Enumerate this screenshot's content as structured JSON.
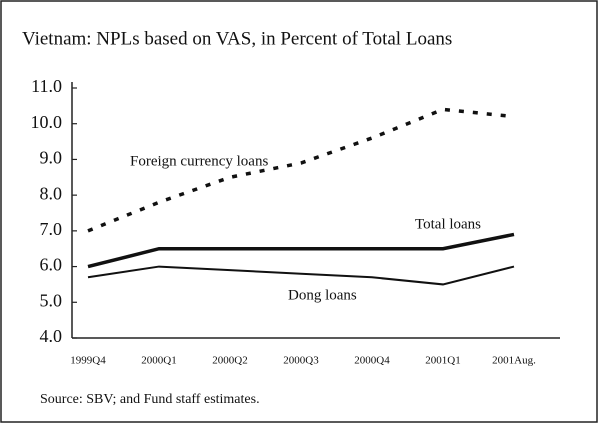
{
  "chart_data": {
    "type": "line",
    "title": "Vietnam: NPLs based on VAS, in Percent of Total Loans",
    "categories": [
      "1999Q4",
      "2000Q1",
      "2000Q2",
      "2000Q3",
      "2000Q4",
      "2001Q1",
      "2001Aug."
    ],
    "series": [
      {
        "name": "Foreign currency loans",
        "color": "#111111",
        "dash": "dotted",
        "values": [
          7.0,
          7.8,
          8.5,
          8.9,
          9.6,
          10.4,
          10.2
        ]
      },
      {
        "name": "Total loans",
        "color": "#111111",
        "dash": "solid-thick",
        "values": [
          6.0,
          6.5,
          6.5,
          6.5,
          6.5,
          6.5,
          6.9
        ]
      },
      {
        "name": "Dong loans",
        "color": "#111111",
        "dash": "solid",
        "values": [
          5.7,
          6.0,
          5.9,
          5.8,
          5.7,
          5.5,
          6.0
        ]
      }
    ],
    "ylim": [
      4,
      11
    ],
    "yticks": [
      {
        "value": 4,
        "label": "4.0"
      },
      {
        "value": 5,
        "label": "5.0"
      },
      {
        "value": 6,
        "label": "6.0"
      },
      {
        "value": 7,
        "label": "7.0"
      },
      {
        "value": 8,
        "label": "8.0"
      },
      {
        "value": 9,
        "label": "9.0"
      },
      {
        "value": 10,
        "label": "10.0"
      },
      {
        "value": 11,
        "label": "11.0"
      }
    ],
    "grid": false,
    "source": "Source: SBV; and Fund staff estimates."
  }
}
